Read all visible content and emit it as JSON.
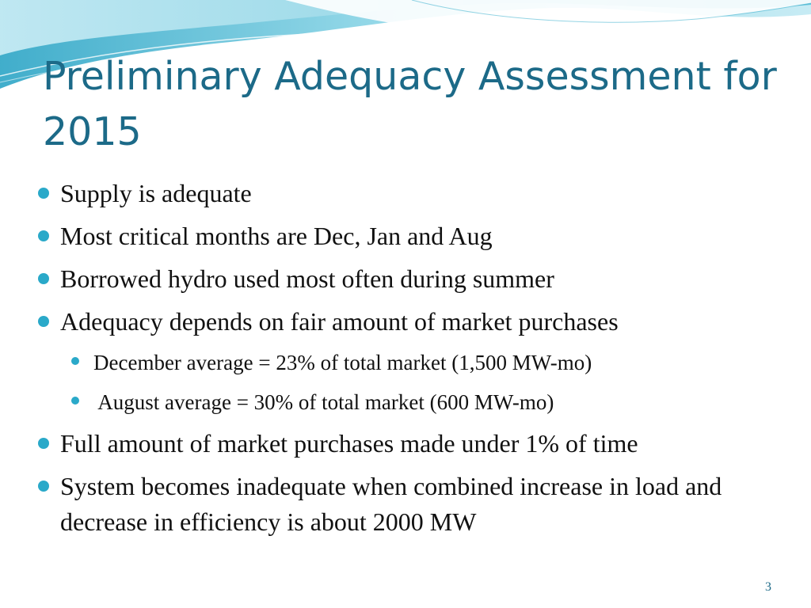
{
  "slide": {
    "title": "Preliminary Adequacy Assessment for 2015",
    "bullets": [
      "Supply is adequate",
      "Most critical months are Dec, Jan and Aug",
      "Borrowed hydro used most often during summer",
      "Adequacy depends on fair amount of market purchases"
    ],
    "sub_bullets": [
      "December average = 23% of total market (1,500 MW-mo)",
      " August average = 30% of total market (600 MW-mo)"
    ],
    "bullets_after": [
      "Full amount of market purchases made under 1% of time",
      "System becomes inadequate when combined increase in load and decrease in efficiency is about 2000 MW"
    ],
    "page_number": "3"
  },
  "colors": {
    "title": "#1c6a88",
    "bullet": "#2aa9c9",
    "text": "#111111",
    "wave_light": "#bfe7f1",
    "wave_mid": "#6cc6dd",
    "wave_dark": "#2aa9c9"
  }
}
